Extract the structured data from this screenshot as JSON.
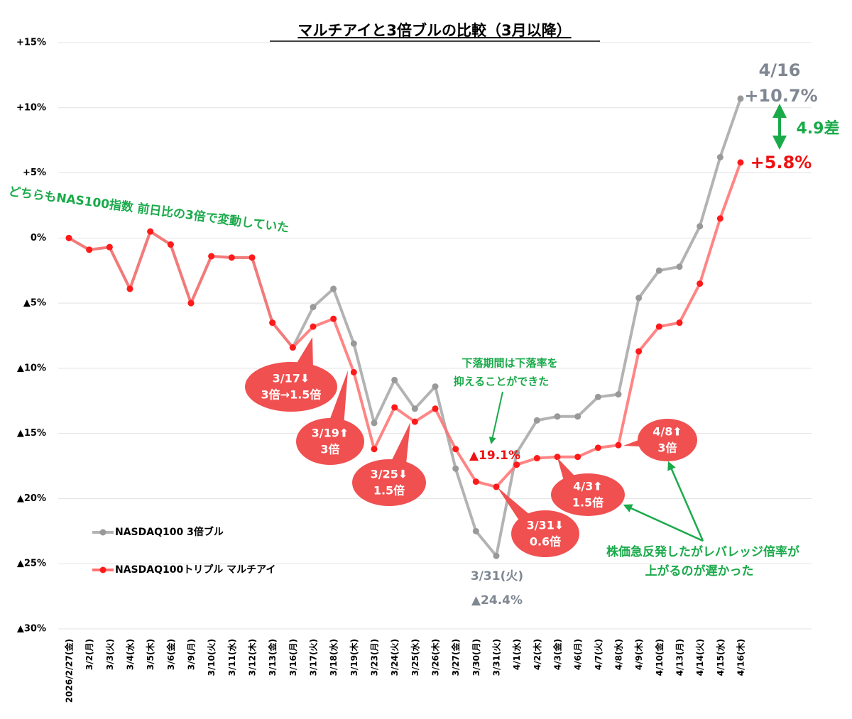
{
  "chart_data": {
    "type": "line",
    "title": "マルチアイと3倍ブルの比較（3月以降）",
    "categories": [
      "2026/2/27(金)",
      "3/2(月)",
      "3/3(火)",
      "3/4(水)",
      "3/5(木)",
      "3/6(金)",
      "3/9(月)",
      "3/10(火)",
      "3/11(水)",
      "3/12(木)",
      "3/13(金)",
      "3/16(月)",
      "3/17(火)",
      "3/18(水)",
      "3/19(木)",
      "3/23(月)",
      "3/24(火)",
      "3/25(水)",
      "3/26(木)",
      "3/27(金)",
      "3/30(月)",
      "3/31(火)",
      "4/1(水)",
      "4/2(木)",
      "4/3(金)",
      "4/6(月)",
      "4/7(火)",
      "4/8(水)",
      "4/9(木)",
      "4/10(金)",
      "4/13(月)",
      "4/14(火)",
      "4/15(水)",
      "4/16(木)"
    ],
    "series": [
      {
        "name": "NASDAQ100 3倍ブル",
        "color": "#b3b3b3",
        "marker_color": "#999999",
        "values": [
          0,
          -0.9,
          -0.7,
          -3.9,
          0.5,
          -0.5,
          -5.0,
          -1.4,
          -1.5,
          -1.5,
          -6.5,
          -8.4,
          -5.3,
          -3.9,
          -8.1,
          -14.2,
          -10.9,
          -13.1,
          -11.4,
          -17.7,
          -22.5,
          -24.4,
          -16.5,
          -14.0,
          -13.7,
          -13.7,
          -12.2,
          -12.0,
          -4.6,
          -2.5,
          -2.2,
          0.9,
          6.2,
          10.7
        ]
      },
      {
        "name": "NASDAQ100トリプル マルチアイ",
        "color": "#ff7070",
        "marker_color": "#ff1a1a",
        "values": [
          0,
          -0.9,
          -0.7,
          -3.9,
          0.5,
          -0.5,
          -5.0,
          -1.4,
          -1.5,
          -1.5,
          -6.5,
          -8.4,
          -6.8,
          -6.2,
          -10.3,
          -16.2,
          -13.0,
          -14.1,
          -13.1,
          -16.2,
          -18.7,
          -19.1,
          -17.4,
          -16.9,
          -16.8,
          -16.8,
          -16.1,
          -15.9,
          -8.7,
          -6.8,
          -6.5,
          -3.5,
          1.5,
          5.8
        ]
      }
    ],
    "ylim": [
      -30,
      15
    ],
    "yticks": [
      {
        "value": 15,
        "label": "+15%"
      },
      {
        "value": 10,
        "label": "+10%"
      },
      {
        "value": 5,
        "label": "+5%"
      },
      {
        "value": 0,
        "label": "0%"
      },
      {
        "value": -5,
        "label": "▲5%"
      },
      {
        "value": -10,
        "label": "▲10%"
      },
      {
        "value": -15,
        "label": "▲15%"
      },
      {
        "value": -20,
        "label": "▲20%"
      },
      {
        "value": -25,
        "label": "▲25%"
      },
      {
        "value": -30,
        "label": "▲30%"
      }
    ],
    "grid": true,
    "legend": "lower left",
    "annotations": [
      {
        "lines": [
          "4/16"
        ]
      },
      {
        "lines": [
          "+10.7%"
        ]
      },
      {
        "lines": [
          "4.9差"
        ]
      },
      {
        "lines": [
          "+5.8%"
        ]
      },
      {
        "lines": [
          "どちらもNAS100指数 前日比の3倍で変動していた"
        ]
      },
      {
        "lines": [
          "3/17⬇",
          "3倍→1.5倍"
        ]
      },
      {
        "lines": [
          "3/19⬆",
          "3倍"
        ]
      },
      {
        "lines": [
          "3/25⬇",
          "1.5倍"
        ]
      },
      {
        "lines": [
          "3/31⬇",
          "0.6倍"
        ]
      },
      {
        "lines": [
          "4/3⬆",
          "1.5倍"
        ]
      },
      {
        "lines": [
          "4/8⬆",
          "3倍"
        ]
      },
      {
        "lines": [
          "下落期間は下落率を",
          "抑えることができた"
        ]
      },
      {
        "lines": [
          "▲19.1%"
        ]
      },
      {
        "lines": [
          "3/31(火)",
          "▲24.4%"
        ]
      },
      {
        "lines": [
          "株価急反発したがレバレッジ倍率が",
          "上がるのが遅かった"
        ]
      }
    ]
  }
}
